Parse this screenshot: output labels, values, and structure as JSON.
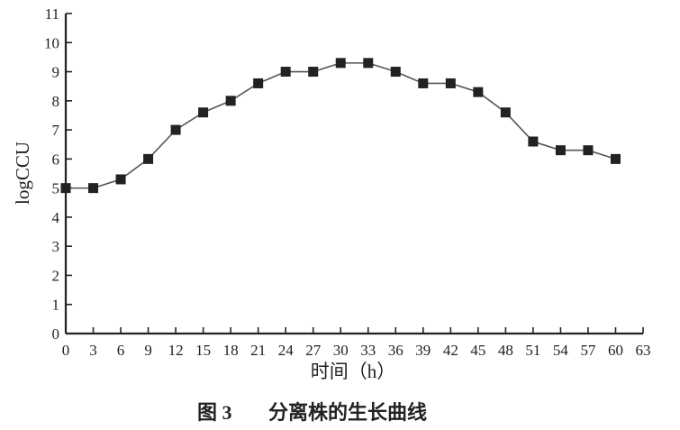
{
  "chart_data": {
    "type": "line",
    "x": [
      0,
      3,
      6,
      9,
      12,
      15,
      18,
      21,
      24,
      27,
      30,
      33,
      36,
      39,
      42,
      45,
      48,
      51,
      54,
      57,
      60
    ],
    "series": [
      {
        "values": [
          5.0,
          5.0,
          5.3,
          6.0,
          7.0,
          7.6,
          8.0,
          8.6,
          9.0,
          9.0,
          9.3,
          9.3,
          9.0,
          8.6,
          8.6,
          8.3,
          7.6,
          6.6,
          6.3,
          6.3,
          6.0
        ]
      }
    ],
    "xlabel": "时间（h）",
    "ylabel": "logCCU",
    "xlim": [
      0,
      63
    ],
    "ylim": [
      0,
      11
    ],
    "xticks": [
      "0",
      "3",
      "6",
      "9",
      "12",
      "15",
      "18",
      "21",
      "24",
      "27",
      "30",
      "33",
      "36",
      "39",
      "42",
      "45",
      "48",
      "51",
      "54",
      "57",
      "60",
      "63"
    ],
    "yticks": [
      "0",
      "1",
      "2",
      "3",
      "4",
      "5",
      "6",
      "7",
      "8",
      "9",
      "10",
      "11"
    ],
    "grid": false,
    "marker": "square",
    "line_color": "#555555",
    "marker_color": "#222222"
  },
  "caption": {
    "label": "图 3",
    "text": "分离株的生长曲线"
  }
}
